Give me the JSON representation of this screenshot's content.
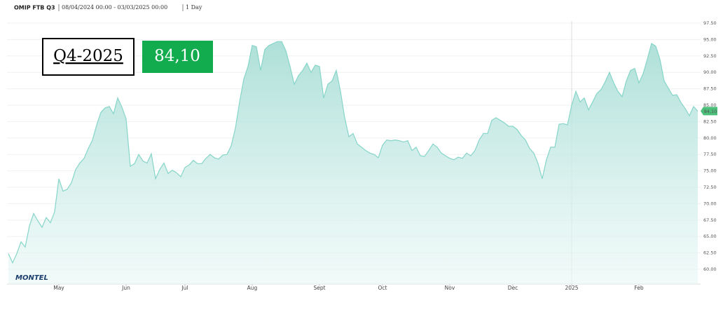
{
  "chart_data": {
    "type": "area",
    "title": "OMIP FTB Q3",
    "subtitle": "08/04/2024 00:00 - 03/03/2025 00:00",
    "interval": "1 Day",
    "contract": "Q4-2025",
    "last_label": "84,10",
    "marker_label": "84.10",
    "logo": "MONTEL",
    "color": "#86d5c9",
    "grid": true,
    "ylim": [
      57.76,
      97.82
    ],
    "yticks": [
      {
        "value": 60,
        "label": "60.00"
      },
      {
        "value": 62.5,
        "label": "62.50"
      },
      {
        "value": 65,
        "label": "65.00"
      },
      {
        "value": 67.5,
        "label": "67.50"
      },
      {
        "value": 70,
        "label": "70.00"
      },
      {
        "value": 72.5,
        "label": "72.50"
      },
      {
        "value": 75,
        "label": "75.00"
      },
      {
        "value": 77.5,
        "label": "77.50"
      },
      {
        "value": 80,
        "label": "80.00"
      },
      {
        "value": 82.5,
        "label": "82.50"
      },
      {
        "value": 85,
        "label": "85.00"
      },
      {
        "value": 87.5,
        "label": "87.50"
      },
      {
        "value": 90,
        "label": "90.00"
      },
      {
        "value": 92.5,
        "label": "92.50"
      },
      {
        "value": 95,
        "label": "95.00"
      },
      {
        "value": 97.5,
        "label": "97.50"
      }
    ],
    "categories": [
      null,
      null,
      null,
      null,
      null,
      null,
      null,
      null,
      null,
      null,
      null,
      null,
      "May",
      null,
      null,
      null,
      null,
      null,
      null,
      null,
      null,
      null,
      null,
      null,
      null,
      null,
      null,
      null,
      "Jun",
      null,
      null,
      null,
      null,
      null,
      null,
      null,
      null,
      null,
      null,
      null,
      null,
      null,
      "Jul",
      null,
      null,
      null,
      null,
      null,
      null,
      null,
      null,
      null,
      null,
      null,
      null,
      null,
      null,
      null,
      "Aug",
      null,
      null,
      null,
      null,
      null,
      null,
      null,
      null,
      null,
      null,
      null,
      null,
      null,
      null,
      null,
      "Sept",
      null,
      null,
      null,
      null,
      null,
      null,
      null,
      null,
      null,
      null,
      null,
      null,
      null,
      null,
      "Oct",
      null,
      null,
      null,
      null,
      null,
      null,
      null,
      null,
      null,
      null,
      null,
      null,
      null,
      null,
      null,
      "Nov",
      null,
      null,
      null,
      null,
      null,
      null,
      null,
      null,
      null,
      null,
      null,
      null,
      null,
      null,
      "Dec",
      null,
      null,
      null,
      null,
      null,
      null,
      null,
      null,
      null,
      null,
      null,
      null,
      null,
      "2025",
      null,
      null,
      null,
      null,
      null,
      null,
      null,
      null,
      null,
      null,
      null,
      null,
      null,
      null,
      null,
      "Feb",
      null,
      null,
      null,
      null,
      null,
      null,
      null,
      null,
      null,
      null,
      null,
      null,
      null,
      null
    ],
    "values": [
      62.4,
      61.0,
      62.4,
      64.2,
      63.4,
      66.6,
      68.5,
      67.4,
      66.4,
      67.9,
      67.1,
      68.8,
      73.8,
      71.9,
      72.2,
      73.2,
      75.2,
      76.2,
      76.9,
      78.4,
      79.7,
      82.0,
      83.9,
      84.6,
      84.8,
      83.7,
      86.1,
      84.7,
      82.9,
      75.7,
      76.1,
      77.5,
      76.5,
      76.2,
      77.6,
      73.8,
      75.2,
      76.2,
      74.6,
      75.1,
      74.7,
      74.1,
      75.5,
      75.9,
      76.6,
      76.1,
      76.1,
      76.9,
      77.5,
      77.0,
      76.8,
      77.4,
      77.5,
      78.8,
      81.5,
      85.5,
      89.0,
      90.9,
      94.1,
      93.9,
      90.3,
      93.5,
      94.1,
      94.4,
      94.7,
      94.7,
      93.3,
      90.9,
      88.2,
      89.5,
      90.3,
      91.4,
      90.0,
      91.1,
      90.9,
      86.1,
      88.2,
      88.7,
      90.3,
      87.1,
      83.1,
      80.2,
      80.7,
      79.1,
      78.6,
      78.1,
      77.7,
      77.5,
      77.0,
      78.9,
      79.7,
      79.6,
      79.7,
      79.6,
      79.4,
      79.6,
      78.1,
      78.6,
      77.3,
      77.2,
      78.1,
      79.1,
      78.6,
      77.7,
      77.3,
      76.9,
      76.7,
      77.1,
      76.9,
      77.7,
      77.3,
      78.1,
      79.7,
      80.7,
      80.7,
      82.7,
      83.1,
      82.7,
      82.3,
      81.8,
      81.8,
      81.3,
      80.4,
      79.7,
      78.4,
      77.7,
      76.1,
      73.8,
      76.7,
      78.6,
      78.6,
      82.1,
      82.2,
      82.0,
      85.0,
      87.1,
      85.5,
      86.1,
      84.3,
      85.5,
      86.8,
      87.4,
      88.6,
      90.0,
      88.4,
      87.1,
      86.3,
      88.7,
      90.3,
      90.6,
      88.4,
      89.8,
      92.0,
      94.4,
      94.0,
      92.0,
      88.7,
      87.6,
      86.5,
      86.6,
      85.4,
      84.5,
      83.4,
      84.8,
      84.1
    ]
  }
}
